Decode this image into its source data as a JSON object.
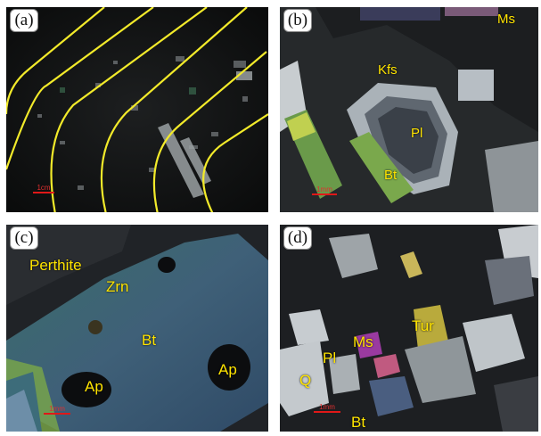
{
  "panels": [
    {
      "label": "(a)",
      "minerals": [],
      "scale": "1cm"
    },
    {
      "label": "(b)",
      "minerals": [
        "Ms",
        "Kfs",
        "Pl",
        "Bt"
      ],
      "scale": "1mm"
    },
    {
      "label": "(c)",
      "minerals": [
        "Perthite",
        "Zrn",
        "Bt",
        "Ap",
        "Ap"
      ],
      "scale": "1mm"
    },
    {
      "label": "(d)",
      "minerals": [
        "Tur",
        "Ms",
        "Pl",
        "Q",
        "Bt"
      ],
      "scale": "1mm"
    }
  ]
}
